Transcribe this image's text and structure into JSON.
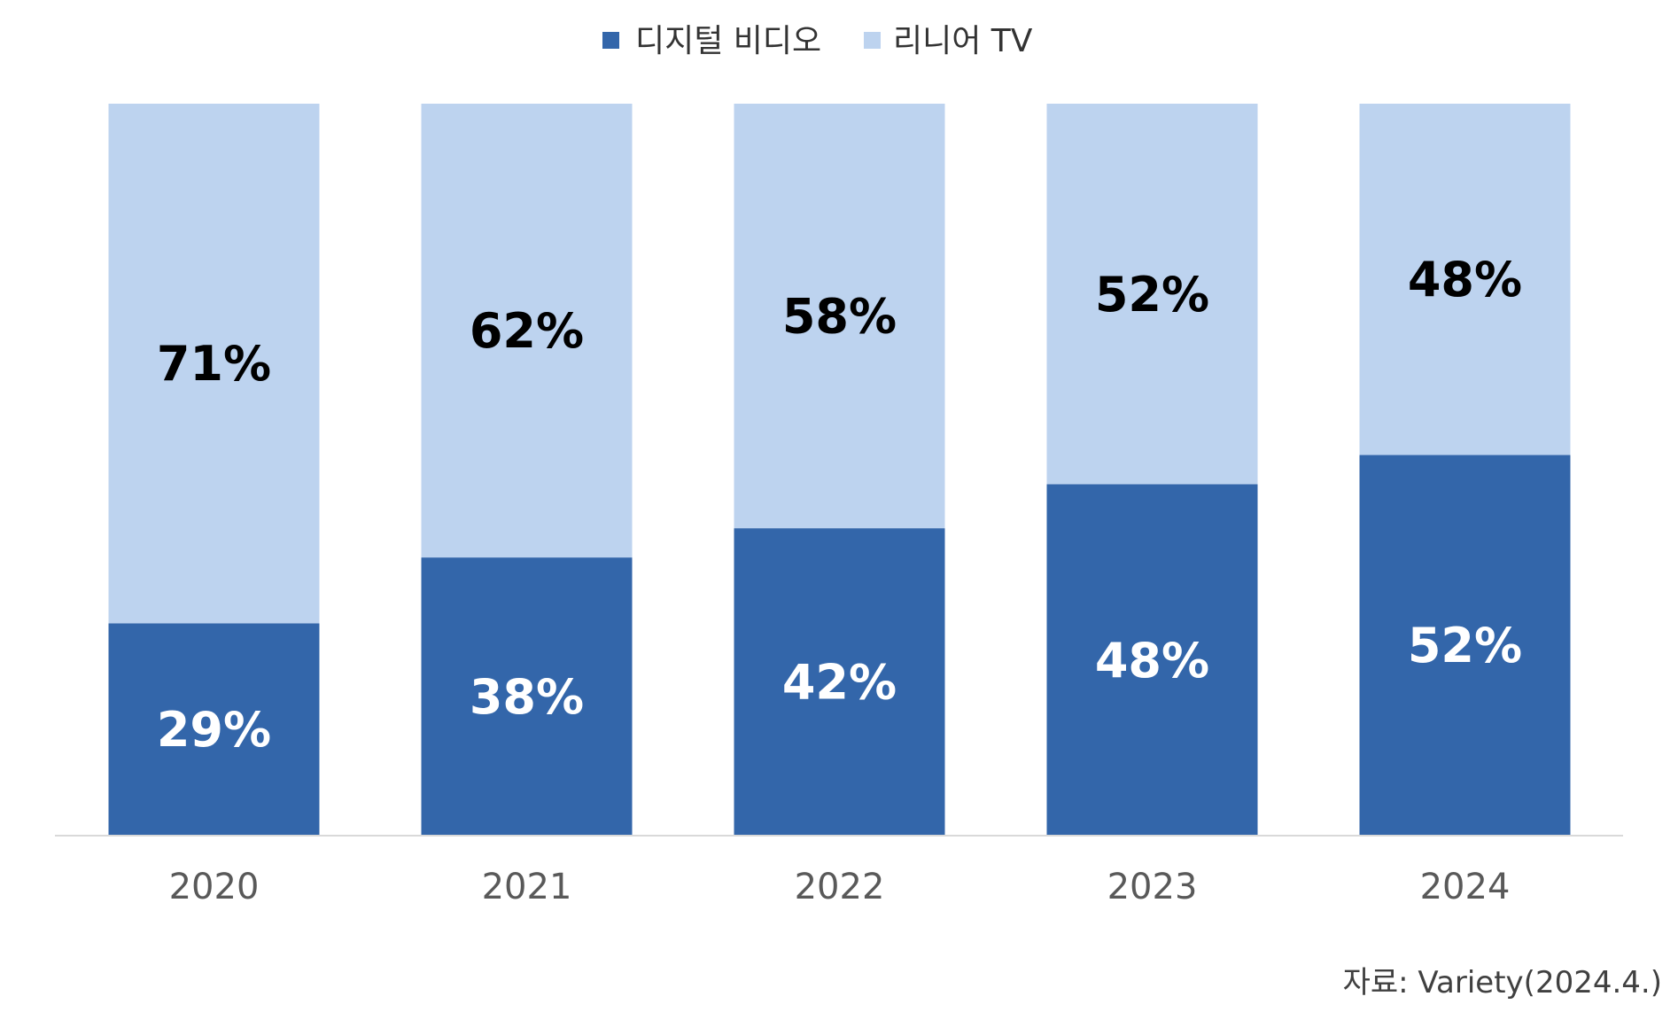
{
  "chart_data": {
    "type": "bar",
    "stacked": true,
    "categories": [
      "2020",
      "2021",
      "2022",
      "2023",
      "2024"
    ],
    "series": [
      {
        "name": "디지털 비디오",
        "color": "#3366aa",
        "values": [
          29,
          38,
          42,
          48,
          52
        ],
        "labels": [
          "29%",
          "38%",
          "42%",
          "48%",
          "52%"
        ],
        "label_color": "#ffffff"
      },
      {
        "name": "리니어 TV",
        "color": "#bdd3ef",
        "values": [
          71,
          62,
          58,
          52,
          48
        ],
        "labels": [
          "71%",
          "62%",
          "58%",
          "52%",
          "48%"
        ],
        "label_color": "#000000"
      }
    ],
    "ylim": [
      0,
      100
    ],
    "grid": false,
    "legend_position": "top-center",
    "axis_color": "#d9d9d9"
  },
  "source": "자료:  Variety(2024.4.)"
}
